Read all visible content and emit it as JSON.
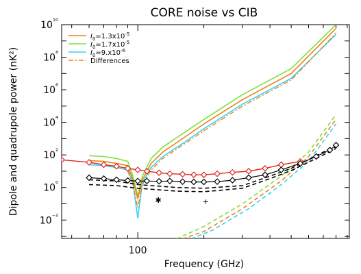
{
  "chart_data": {
    "type": "line",
    "title": "CORE noise vs CIB",
    "xlabel": "Frequency (GHz)",
    "ylabel": "Dipole and quadrupole power (nK²)",
    "xscale": "log",
    "yscale": "log",
    "xlim": [
      45,
      920
    ],
    "ylim": [
      0.00075,
      10000000000
    ],
    "x_ticks": [
      {
        "value": 100,
        "label": "100"
      }
    ],
    "y_ticks": [
      {
        "value": 0.01,
        "label": "10⁻²"
      },
      {
        "value": 1,
        "label": "10⁰"
      },
      {
        "value": 100,
        "label": "10²"
      },
      {
        "value": 10000,
        "label": "10⁴"
      },
      {
        "value": 1000000,
        "label": "10⁶"
      },
      {
        "value": 100000000,
        "label": "10⁸"
      },
      {
        "value": 10000000000,
        "label": "10¹⁰"
      }
    ],
    "legend": {
      "placement": "top-left",
      "entries": [
        {
          "label_main": "I",
          "label_sub": "0",
          "label_rest": "=1.3x10",
          "label_sup": "-5",
          "color": "#f07f14",
          "dash": "solid"
        },
        {
          "label_main": "I",
          "label_sub": "0",
          "label_rest": "=1.7x10",
          "label_sup": "-5",
          "color": "#7ee03c",
          "dash": "solid"
        },
        {
          "label_main": "I",
          "label_sub": "0",
          "label_rest": "=9.x10",
          "label_sup": "-6",
          "color": "#34d2f4",
          "dash": "solid"
        },
        {
          "label_main": "Differences",
          "label_sub": "",
          "label_rest": "",
          "label_sup": "",
          "color": "#f07f14",
          "dash": "dashdot"
        }
      ]
    },
    "series": [
      {
        "name": "I0=1.7x10^-5",
        "color": "#7ee03c",
        "dash": "solid",
        "width": 1.6,
        "x": [
          60,
          70,
          80,
          90,
          95,
          100,
          105,
          115,
          130,
          160,
          200,
          300,
          500,
          800
        ],
        "y": [
          90,
          80,
          60,
          40,
          5,
          0.3,
          5,
          60,
          300,
          2000,
          15000,
          500000,
          20000000,
          10000000000
        ]
      },
      {
        "name": "I0=1.3x10^-5",
        "color": "#f07f14",
        "dash": "solid",
        "width": 1.6,
        "x": [
          60,
          70,
          80,
          90,
          95,
          100,
          105,
          115,
          130,
          160,
          200,
          300,
          500,
          800
        ],
        "y": [
          45,
          40,
          30,
          22,
          3,
          0.2,
          3,
          30,
          150,
          1000,
          8000,
          250000,
          10000000,
          6000000000
        ]
      },
      {
        "name": "I0=9.x10^-6",
        "color": "#34d2f4",
        "dash": "solid",
        "width": 1.6,
        "x": [
          60,
          70,
          80,
          90,
          95,
          100,
          105,
          115,
          130,
          160,
          200,
          300,
          500,
          800
        ],
        "y": [
          25,
          22,
          17,
          12,
          2,
          0.013,
          2,
          17,
          80,
          500,
          4000,
          130000,
          5000000,
          2500000000
        ]
      },
      {
        "name": "Differences",
        "color": "#f07f14",
        "dash": "dashdot",
        "width": 1.4,
        "x": [
          90,
          95,
          100,
          105,
          115,
          130,
          160,
          200,
          300,
          500,
          800
        ],
        "y": [
          10,
          1.5,
          0.06,
          1.5,
          12,
          60,
          400,
          3000,
          100000,
          4000000,
          3000000000
        ]
      },
      {
        "name": "",
        "color": "#7ee03c",
        "dash": "dash",
        "width": 1.6,
        "x": [
          150,
          200,
          300,
          450,
          600,
          800
        ],
        "y": [
          0.0007,
          0.004,
          0.1,
          5,
          150,
          30000
        ]
      },
      {
        "name": "",
        "color": "#f07f14",
        "dash": "dash",
        "width": 1.6,
        "x": [
          160,
          200,
          300,
          450,
          600,
          800
        ],
        "y": [
          0.0007,
          0.002,
          0.05,
          2.5,
          80,
          15000
        ]
      },
      {
        "name": "",
        "color": "#34d2f4",
        "dash": "dash",
        "width": 1.6,
        "x": [
          175,
          220,
          320,
          450,
          600,
          800
        ],
        "y": [
          0.0007,
          0.0025,
          0.05,
          1.5,
          40,
          8000
        ]
      },
      {
        "name": "",
        "color": "#000000",
        "dash": "dash",
        "width": 1.6,
        "x": [
          60,
          80,
          100,
          150,
          200,
          300,
          400,
          500,
          700,
          800
        ],
        "y": [
          3,
          2.5,
          1.5,
          1.0,
          0.9,
          1.3,
          5,
          15,
          150,
          300
        ]
      },
      {
        "name": "",
        "color": "#000000",
        "dash": "dash",
        "width": 1.6,
        "x": [
          60,
          80,
          100,
          150,
          200,
          300,
          400,
          500,
          700,
          800
        ],
        "y": [
          1.5,
          1.3,
          0.9,
          0.6,
          0.55,
          0.9,
          3.5,
          11,
          100,
          250
        ]
      },
      {
        "name": "",
        "color": "#e0241c",
        "dash": "solid",
        "width": 1.4,
        "marker": "diamond-open",
        "x": [
          45,
          60,
          70,
          80,
          90,
          100,
          110,
          125,
          140,
          160,
          180,
          200,
          230,
          270,
          320,
          380,
          450,
          550
        ],
        "y": [
          50,
          35,
          25,
          20,
          15,
          12,
          10,
          8,
          7,
          6.5,
          6,
          6,
          7,
          8.5,
          10,
          15,
          25,
          40
        ]
      },
      {
        "name": "",
        "color": "#000000",
        "dash": "solid",
        "width": 1.2,
        "marker": "diamond-open",
        "x": [
          60,
          70,
          80,
          90,
          100,
          110,
          125,
          140,
          160,
          180,
          200,
          230,
          270,
          320,
          380,
          450,
          550,
          650,
          750,
          800
        ],
        "y": [
          4,
          3.5,
          3,
          2.7,
          2.5,
          2.5,
          2.4,
          2.5,
          2.3,
          2.2,
          2.2,
          2.3,
          2.8,
          4,
          6,
          12,
          30,
          80,
          200,
          400
        ]
      }
    ],
    "points": [
      {
        "symbol": "✱",
        "x": 124,
        "y": 0.17
      },
      {
        "symbol": "+",
        "x": 204,
        "y": 0.14
      }
    ]
  }
}
